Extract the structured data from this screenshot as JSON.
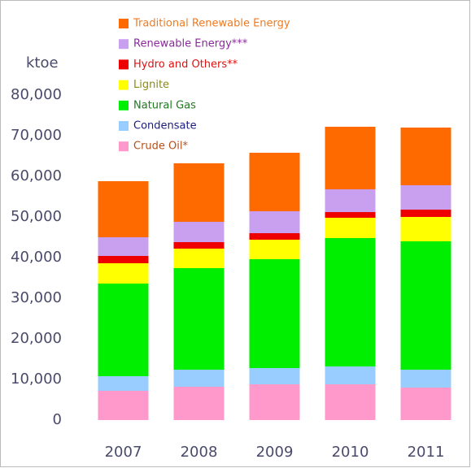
{
  "chart_data": {
    "type": "stacked_bar",
    "y_unit": "ktoe",
    "categories": [
      "2007",
      "2008",
      "2009",
      "2010",
      "2011"
    ],
    "series": [
      {
        "name": "Crude Oil*",
        "color": "#ff99cc",
        "text_color": "#b5501a",
        "values": [
          7200,
          8200,
          8800,
          8800,
          8000
        ]
      },
      {
        "name": "Condensate",
        "color": "#99ccff",
        "text_color": "#1a1a80",
        "values": [
          3600,
          4200,
          4000,
          4400,
          4400
        ]
      },
      {
        "name": "Natural Gas",
        "color": "#00ee00",
        "text_color": "#1f7a1f",
        "values": [
          22800,
          25000,
          26800,
          31600,
          31600
        ]
      },
      {
        "name": "Lignite",
        "color": "#ffff00",
        "text_color": "#8a8a1a",
        "values": [
          5000,
          4800,
          4800,
          5000,
          6000
        ]
      },
      {
        "name": "Hydro and Others**",
        "color": "#ee0000",
        "text_color": "#e01010",
        "values": [
          1800,
          1600,
          1600,
          1400,
          1800
        ]
      },
      {
        "name": "Renewable Energy***",
        "color": "#c9a0f0",
        "text_color": "#8a2a9a",
        "values": [
          4600,
          5000,
          5400,
          5600,
          6000
        ]
      },
      {
        "name": "Traditional Renewable Energy",
        "color": "#ff6a00",
        "text_color": "#f07a20",
        "values": [
          13800,
          14400,
          14400,
          15400,
          14200
        ]
      }
    ],
    "ylim": [
      0,
      80000
    ],
    "yticks": [
      0,
      {
        "value": 10000,
        "label": "10,000"
      },
      {
        "value": 20000,
        "label": "20,000"
      },
      {
        "value": 30000,
        "label": "30,000"
      },
      {
        "value": 40000,
        "label": "40,000"
      },
      {
        "value": 50000,
        "label": "50,000"
      },
      {
        "value": 60000,
        "label": "60,000"
      },
      {
        "value": 70000,
        "label": "70,000"
      },
      {
        "value": 80000,
        "label": "80,000"
      }
    ],
    "grid": false
  }
}
